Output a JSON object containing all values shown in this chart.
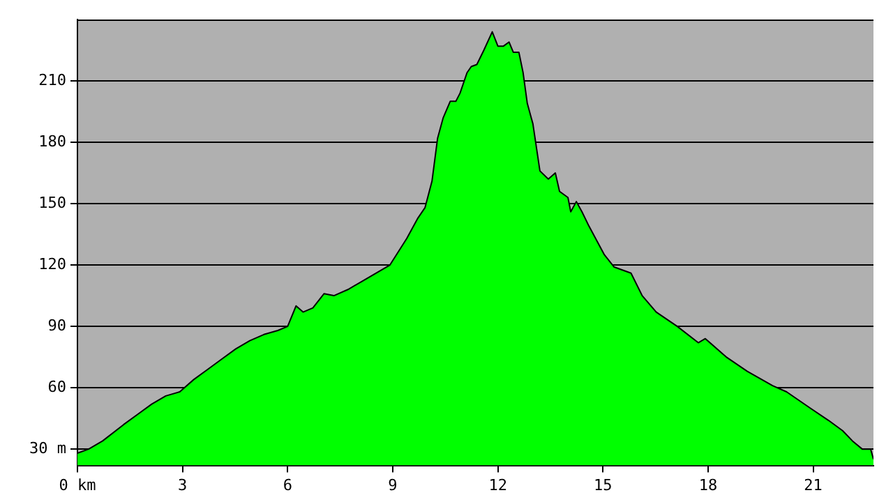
{
  "chart_data": {
    "type": "area",
    "x": [
      0,
      0.32,
      0.72,
      1.32,
      1.72,
      2.12,
      2.52,
      2.92,
      3.32,
      3.72,
      4.12,
      4.52,
      4.92,
      5.32,
      5.72,
      6.0,
      6.24,
      6.44,
      6.72,
      7.04,
      7.32,
      7.72,
      8.12,
      8.52,
      8.92,
      9.4,
      9.72,
      9.92,
      10.12,
      10.28,
      10.44,
      10.64,
      10.8,
      10.92,
      11.12,
      11.24,
      11.4,
      11.6,
      11.84,
      12.0,
      12.16,
      12.32,
      12.44,
      12.6,
      12.72,
      12.84,
      13.0,
      13.2,
      13.44,
      13.64,
      13.76,
      14.0,
      14.08,
      14.24,
      14.4,
      14.6,
      15.04,
      15.32,
      15.8,
      16.12,
      16.52,
      17.12,
      17.72,
      17.92,
      18.52,
      19.12,
      19.84,
      20.24,
      20.92,
      21.44,
      21.84,
      22.12,
      22.4,
      22.64,
      22.72
    ],
    "series": [
      {
        "color": "#00ff00",
        "values": [
          28,
          30,
          34,
          42,
          47,
          52,
          56,
          58,
          64,
          69,
          74,
          79,
          83,
          86,
          88,
          90,
          100,
          97,
          99,
          106,
          105,
          108,
          112,
          116,
          120,
          133,
          143,
          148,
          161,
          182,
          192,
          200,
          200,
          204,
          214,
          217,
          218,
          225,
          234,
          227,
          227,
          229,
          224,
          224,
          214,
          199,
          189,
          166,
          162,
          165,
          156,
          153,
          146,
          151,
          146,
          139,
          125,
          119,
          116,
          105,
          97,
          90,
          82,
          84,
          75,
          68,
          61,
          58,
          50,
          44,
          39,
          34,
          30,
          30,
          25
        ]
      }
    ],
    "xlim": [
      0,
      22.72
    ],
    "ylim": [
      22,
      240
    ],
    "xticks": [
      {
        "value": 0,
        "label": "0 km"
      },
      3,
      6,
      9,
      12,
      15,
      18,
      21
    ],
    "yticks": [
      {
        "value": 30,
        "label": "30 m"
      },
      60,
      90,
      120,
      150,
      180,
      210
    ],
    "grid": "y",
    "legend": false,
    "marker": "none",
    "line_style": "solid"
  }
}
